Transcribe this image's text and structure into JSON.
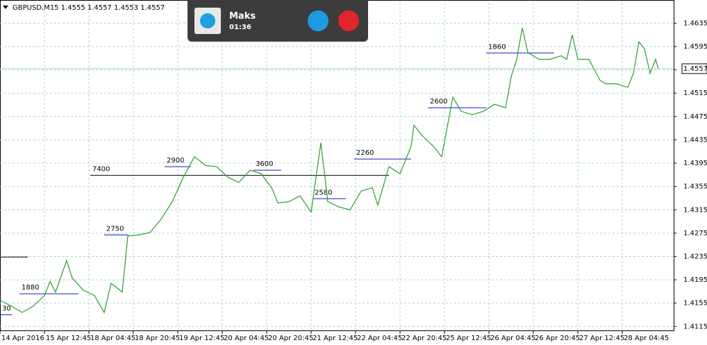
{
  "chart_data": {
    "type": "line",
    "title": "GBPUSD,M15  1.4555 1.4557 1.4553 1.4557",
    "x": [
      0,
      16,
      32,
      48,
      64,
      72,
      80,
      96,
      104,
      120,
      136,
      150,
      160,
      176,
      184,
      200,
      216,
      232,
      248,
      264,
      280,
      296,
      312,
      328,
      344,
      360,
      376,
      392,
      400,
      416,
      432,
      448,
      462,
      472,
      488,
      504,
      520,
      536,
      544,
      560,
      576,
      592,
      596,
      608,
      624,
      636,
      652,
      664,
      680,
      696,
      712,
      728,
      736,
      744,
      752,
      760,
      776,
      792,
      808,
      816,
      824,
      832,
      848,
      856,
      864,
      872,
      888,
      904,
      912,
      920,
      928,
      936,
      944,
      948
    ],
    "series": [
      {
        "name": "GBPUSD",
        "color": "#2e9b2e",
        "values": [
          1.416,
          1.415,
          1.4139,
          1.415,
          1.4168,
          1.4192,
          1.4174,
          1.4228,
          1.4198,
          1.4177,
          1.4168,
          1.4139,
          1.4189,
          1.4174,
          1.427,
          1.4272,
          1.4276,
          1.4299,
          1.4329,
          1.4371,
          1.4406,
          1.4391,
          1.4389,
          1.4371,
          1.4362,
          1.4383,
          1.4377,
          1.4351,
          1.4327,
          1.4329,
          1.4339,
          1.4311,
          1.443,
          1.4329,
          1.432,
          1.4315,
          1.4347,
          1.4353,
          1.4323,
          1.4389,
          1.4377,
          1.4424,
          1.446,
          1.4442,
          1.4424,
          1.4406,
          1.4508,
          1.4484,
          1.4478,
          1.4484,
          1.4496,
          1.449,
          1.4543,
          1.4573,
          1.4627,
          1.4585,
          1.4573,
          1.4573,
          1.4579,
          1.4573,
          1.4615,
          1.4573,
          1.4573,
          1.4555,
          1.4537,
          1.4531,
          1.4531,
          1.4525,
          1.4549,
          1.4603,
          1.4591,
          1.4549,
          1.4573,
          1.4557
        ]
      }
    ],
    "xlim": [
      0,
      970
    ],
    "xticks": [
      {
        "value": 0,
        "label": "14 Apr 2016"
      },
      {
        "value": 64,
        "label": "15 Apr 12:45"
      },
      {
        "value": 128,
        "label": "18 Apr 04:45"
      },
      {
        "value": 192,
        "label": "18 Apr 20:45"
      },
      {
        "value": 256,
        "label": "19 Apr 12:45"
      },
      {
        "value": 320,
        "label": "20 Apr 04:45"
      },
      {
        "value": 384,
        "label": "20 Apr 20:45"
      },
      {
        "value": 448,
        "label": "21 Apr 12:45"
      },
      {
        "value": 512,
        "label": "22 Apr 04:45"
      },
      {
        "value": 576,
        "label": "22 Apr 20:45"
      },
      {
        "value": 640,
        "label": "25 Apr 12:45"
      },
      {
        "value": 704,
        "label": "26 Apr 04:45"
      },
      {
        "value": 768,
        "label": "26 Apr 20:45"
      },
      {
        "value": 832,
        "label": "27 Apr 12:45"
      },
      {
        "value": 896,
        "label": "28 Apr 04:45"
      }
    ],
    "ylim": [
      1.4107,
      1.467
    ],
    "yticks": [
      1.4115,
      1.4155,
      1.4195,
      1.4235,
      1.4275,
      1.4315,
      1.4355,
      1.4395,
      1.4435,
      1.4475,
      1.4515,
      1.4555,
      1.4595,
      1.4635
    ],
    "grid": true,
    "current_price": 1.4557,
    "levels": [
      {
        "label": "1880",
        "price": 1.4171,
        "from": 28,
        "to": 113,
        "color": "#1a1acc"
      },
      {
        "label": "2750",
        "price": 1.4272,
        "from": 150,
        "to": 185,
        "color": "#1a1acc"
      },
      {
        "label": "2900",
        "price": 1.4389,
        "from": 237,
        "to": 275,
        "color": "#1a1acc"
      },
      {
        "label": "7400",
        "price": 1.4374,
        "from": 130,
        "to": 560,
        "color": "#000000"
      },
      {
        "label": "3600",
        "price": 1.4383,
        "from": 365,
        "to": 405,
        "color": "#1a1acc"
      },
      {
        "label": "2580",
        "price": 1.4334,
        "from": 450,
        "to": 498,
        "color": "#1a1acc"
      },
      {
        "label": "2260",
        "price": 1.4402,
        "from": 510,
        "to": 592,
        "color": "#1a1acc"
      },
      {
        "label": "2600",
        "price": 1.449,
        "from": 616,
        "to": 700,
        "color": "#1a1acc"
      },
      {
        "label": "1860",
        "price": 1.4584,
        "from": 700,
        "to": 798,
        "color": "#1a1acc"
      },
      {
        "label": "30",
        "price": 1.4135,
        "from": 0,
        "to": 17,
        "color": "#1a1acc"
      },
      {
        "price": 1.4234,
        "from": 0,
        "to": 40,
        "color": "#000000"
      }
    ]
  },
  "call": {
    "name": "Maks",
    "duration": "01:36"
  }
}
